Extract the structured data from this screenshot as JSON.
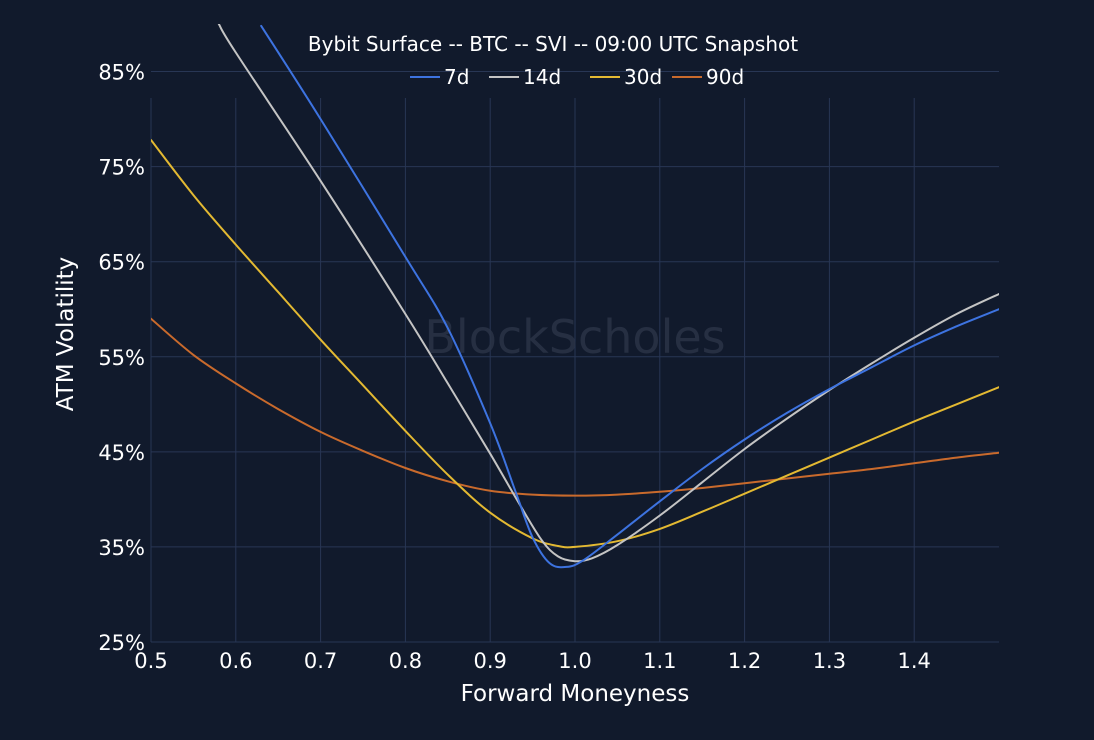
{
  "chart_data": {
    "type": "line",
    "title": "Bybit Surface -- BTC -- SVI -- 09:00 UTC Snapshot",
    "xlabel": "Forward Moneyness",
    "ylabel": "ATM Volatility",
    "xlim": [
      0.5,
      1.5
    ],
    "ylim": [
      25,
      90
    ],
    "xticks": [
      0.5,
      0.6,
      0.7,
      0.8,
      0.9,
      1.0,
      1.1,
      1.2,
      1.3,
      1.4
    ],
    "xtick_labels": [
      "0.5",
      "0.6",
      "0.7",
      "0.8",
      "0.9",
      "1.0",
      "1.1",
      "1.2",
      "1.3",
      "1.4"
    ],
    "yticks": [
      25,
      35,
      45,
      55,
      65,
      75,
      85
    ],
    "ytick_labels": [
      "25%",
      "35%",
      "45%",
      "55%",
      "65%",
      "75%",
      "85%"
    ],
    "grid": true,
    "legend_position": "top-center",
    "watermark": "BlockScholes",
    "series": [
      {
        "name": "7d",
        "color": "#3d73e0",
        "points": [
          [
            0.63,
            89.8
          ],
          [
            0.7,
            80.0
          ],
          [
            0.8,
            65.5
          ],
          [
            0.85,
            58.0
          ],
          [
            0.9,
            48.0
          ],
          [
            0.93,
            40.8
          ],
          [
            0.95,
            36.0
          ],
          [
            0.97,
            33.3
          ],
          [
            0.99,
            32.9
          ],
          [
            1.01,
            33.6
          ],
          [
            1.05,
            36.3
          ],
          [
            1.1,
            39.8
          ],
          [
            1.15,
            43.2
          ],
          [
            1.2,
            46.3
          ],
          [
            1.25,
            49.1
          ],
          [
            1.3,
            51.6
          ],
          [
            1.35,
            53.9
          ],
          [
            1.4,
            56.2
          ],
          [
            1.45,
            58.2
          ],
          [
            1.5,
            60.0
          ]
        ]
      },
      {
        "name": "14d",
        "color": "#c4c4c4",
        "points": [
          [
            0.58,
            90.0
          ],
          [
            0.6,
            87.0
          ],
          [
            0.7,
            73.5
          ],
          [
            0.8,
            59.5
          ],
          [
            0.85,
            52.2
          ],
          [
            0.9,
            44.8
          ],
          [
            0.93,
            40.2
          ],
          [
            0.96,
            35.8
          ],
          [
            0.98,
            34.0
          ],
          [
            1.0,
            33.5
          ],
          [
            1.02,
            33.8
          ],
          [
            1.05,
            35.2
          ],
          [
            1.1,
            38.3
          ],
          [
            1.15,
            41.8
          ],
          [
            1.2,
            45.3
          ],
          [
            1.25,
            48.5
          ],
          [
            1.3,
            51.5
          ],
          [
            1.35,
            54.3
          ],
          [
            1.4,
            57.0
          ],
          [
            1.45,
            59.5
          ],
          [
            1.5,
            61.6
          ]
        ]
      },
      {
        "name": "30d",
        "color": "#e3b932",
        "points": [
          [
            0.5,
            77.8
          ],
          [
            0.55,
            72.0
          ],
          [
            0.6,
            66.8
          ],
          [
            0.65,
            61.8
          ],
          [
            0.7,
            56.8
          ],
          [
            0.75,
            52.0
          ],
          [
            0.8,
            47.2
          ],
          [
            0.85,
            42.6
          ],
          [
            0.9,
            38.6
          ],
          [
            0.95,
            35.9
          ],
          [
            0.98,
            35.1
          ],
          [
            1.0,
            35.0
          ],
          [
            1.05,
            35.6
          ],
          [
            1.1,
            36.9
          ],
          [
            1.15,
            38.7
          ],
          [
            1.2,
            40.6
          ],
          [
            1.25,
            42.5
          ],
          [
            1.3,
            44.4
          ],
          [
            1.35,
            46.3
          ],
          [
            1.4,
            48.2
          ],
          [
            1.45,
            50.0
          ],
          [
            1.5,
            51.8
          ]
        ]
      },
      {
        "name": "90d",
        "color": "#c96a2c",
        "points": [
          [
            0.5,
            59.0
          ],
          [
            0.55,
            55.2
          ],
          [
            0.6,
            52.2
          ],
          [
            0.65,
            49.5
          ],
          [
            0.7,
            47.1
          ],
          [
            0.75,
            45.1
          ],
          [
            0.8,
            43.3
          ],
          [
            0.85,
            41.9
          ],
          [
            0.9,
            40.9
          ],
          [
            0.95,
            40.5
          ],
          [
            1.0,
            40.4
          ],
          [
            1.05,
            40.5
          ],
          [
            1.1,
            40.8
          ],
          [
            1.15,
            41.2
          ],
          [
            1.2,
            41.7
          ],
          [
            1.25,
            42.2
          ],
          [
            1.3,
            42.7
          ],
          [
            1.35,
            43.2
          ],
          [
            1.4,
            43.8
          ],
          [
            1.45,
            44.4
          ],
          [
            1.5,
            44.9
          ]
        ]
      }
    ]
  }
}
